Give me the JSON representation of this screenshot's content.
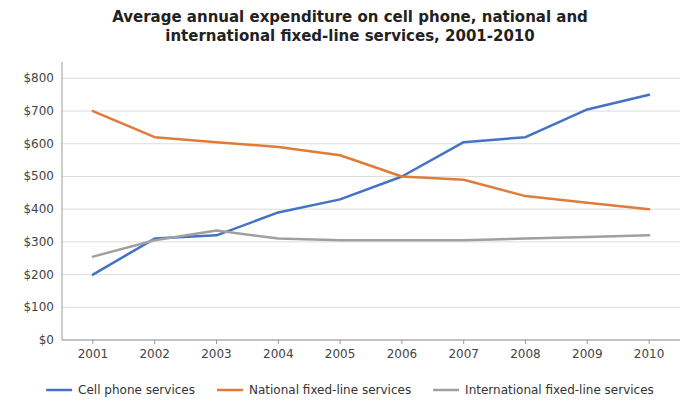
{
  "chart_data": {
    "type": "line",
    "title": "Average annual expenditure on cell phone, national and\ninternational fixed-line services, 2001-2010",
    "x": [
      2001,
      2002,
      2003,
      2004,
      2005,
      2006,
      2007,
      2008,
      2009,
      2010
    ],
    "series": [
      {
        "name": "Cell phone services",
        "color": "#4472C4",
        "values": [
          200,
          310,
          320,
          390,
          430,
          500,
          605,
          620,
          705,
          750
        ]
      },
      {
        "name": "National fixed-line services",
        "color": "#E07B39",
        "values": [
          700,
          620,
          605,
          590,
          565,
          500,
          490,
          440,
          420,
          400
        ]
      },
      {
        "name": "International fixed-line services",
        "color": "#A0A0A0",
        "values": [
          255,
          305,
          335,
          310,
          305,
          305,
          305,
          310,
          315,
          320
        ]
      }
    ],
    "xlim": [
      2000.5,
      2010.5
    ],
    "xticks": [
      2001,
      2002,
      2003,
      2004,
      2005,
      2006,
      2007,
      2008,
      2009,
      2010
    ],
    "ylim": [
      0,
      850
    ],
    "yticks": [
      {
        "value": 0,
        "label": "$0"
      },
      {
        "value": 100,
        "label": "$100"
      },
      {
        "value": 200,
        "label": "$200"
      },
      {
        "value": 300,
        "label": "$300"
      },
      {
        "value": 400,
        "label": "$400"
      },
      {
        "value": 500,
        "label": "$500"
      },
      {
        "value": 600,
        "label": "$600"
      },
      {
        "value": 700,
        "label": "$700"
      },
      {
        "value": 800,
        "label": "$800"
      }
    ],
    "grid": true,
    "legend": "bottom"
  }
}
